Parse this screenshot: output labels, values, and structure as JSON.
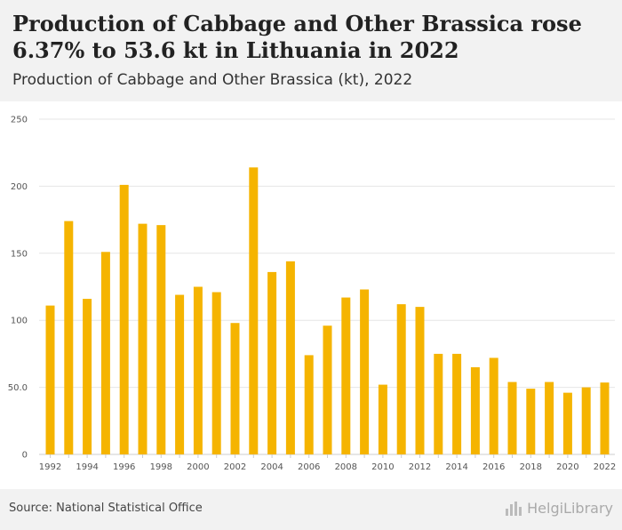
{
  "header": {
    "title": "Production of Cabbage and Other Brassica rose 6.37% to 53.6 kt in Lithuania in 2022",
    "subtitle": "Production of Cabbage and Other Brassica (kt), 2022"
  },
  "footer": {
    "source": "Source: National Statistical Office",
    "logo_text": "HelgiLibrary"
  },
  "chart_data": {
    "type": "bar",
    "title": "Production of Cabbage and Other Brassica rose 6.37% to 53.6 kt in Lithuania in 2022",
    "subtitle": "Production of Cabbage and Other Brassica (kt), 2022",
    "xlabel": "",
    "ylabel": "",
    "bar_color": "#f5b400",
    "ylim": [
      0,
      250
    ],
    "yticks": [
      "0",
      "50.0",
      "100",
      "150",
      "200",
      "250"
    ],
    "ytick_values": [
      0,
      50,
      100,
      150,
      200,
      250
    ],
    "xtick_labels": [
      "1992",
      "1994",
      "1996",
      "1998",
      "2000",
      "2002",
      "2004",
      "2006",
      "2008",
      "2010",
      "2012",
      "2014",
      "2016",
      "2018",
      "2020",
      "2022"
    ],
    "grid": true,
    "categories": [
      "1992",
      "1993",
      "1994",
      "1995",
      "1996",
      "1997",
      "1998",
      "1999",
      "2000",
      "2001",
      "2002",
      "2003",
      "2004",
      "2005",
      "2006",
      "2007",
      "2008",
      "2009",
      "2010",
      "2011",
      "2012",
      "2013",
      "2014",
      "2015",
      "2016",
      "2017",
      "2018",
      "2019",
      "2020",
      "2021",
      "2022"
    ],
    "values": [
      111,
      174,
      116,
      151,
      201,
      172,
      171,
      119,
      125,
      121,
      98,
      214,
      136,
      144,
      74,
      96,
      117,
      123,
      52,
      112,
      110,
      75,
      75,
      65,
      72,
      54,
      49,
      54,
      46,
      50,
      53.6
    ]
  }
}
